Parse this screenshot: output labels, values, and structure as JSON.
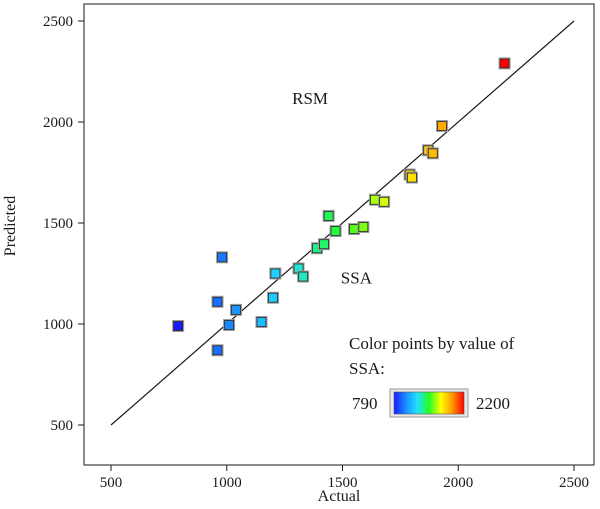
{
  "chart_data": {
    "type": "scatter",
    "title": "",
    "xlabel": "Actual",
    "ylabel": "Predicted",
    "xlim": [
      400,
      2550
    ],
    "ylim": [
      400,
      2550
    ],
    "xticks": [
      500,
      1000,
      1500,
      2000,
      2500
    ],
    "yticks": [
      500,
      1000,
      1500,
      2000,
      2500
    ],
    "grid": false,
    "reference_line": {
      "from": [
        500,
        500
      ],
      "to": [
        2500,
        2500
      ]
    },
    "annotations": [
      {
        "text": "RSM",
        "x": 1360,
        "y": 2090
      },
      {
        "text": "SSA",
        "x": 1560,
        "y": 1200
      }
    ],
    "color_legend": {
      "title_line1": "Color points by value of",
      "title_line2": "SSA:",
      "min_label": "790",
      "max_label": "2200",
      "min": 790,
      "max": 2200,
      "placement": "bottom-right",
      "colors": [
        "#1a1aff",
        "#1890ff",
        "#22e0ff",
        "#22ff22",
        "#ffff00",
        "#ff9900",
        "#ff0000"
      ]
    },
    "points": [
      {
        "x": 790,
        "y": 990,
        "c": 790
      },
      {
        "x": 960,
        "y": 870,
        "c": 960
      },
      {
        "x": 960,
        "y": 1110,
        "c": 960
      },
      {
        "x": 980,
        "y": 1330,
        "c": 980
      },
      {
        "x": 1010,
        "y": 995,
        "c": 1010
      },
      {
        "x": 1040,
        "y": 1070,
        "c": 1040
      },
      {
        "x": 1150,
        "y": 1010,
        "c": 1150
      },
      {
        "x": 1200,
        "y": 1130,
        "c": 1200
      },
      {
        "x": 1210,
        "y": 1250,
        "c": 1210
      },
      {
        "x": 1310,
        "y": 1275,
        "c": 1310
      },
      {
        "x": 1330,
        "y": 1235,
        "c": 1330
      },
      {
        "x": 1390,
        "y": 1375,
        "c": 1390
      },
      {
        "x": 1420,
        "y": 1395,
        "c": 1420
      },
      {
        "x": 1440,
        "y": 1535,
        "c": 1440
      },
      {
        "x": 1470,
        "y": 1460,
        "c": 1470
      },
      {
        "x": 1550,
        "y": 1470,
        "c": 1550
      },
      {
        "x": 1590,
        "y": 1480,
        "c": 1590
      },
      {
        "x": 1640,
        "y": 1615,
        "c": 1640
      },
      {
        "x": 1680,
        "y": 1605,
        "c": 1680
      },
      {
        "x": 1790,
        "y": 1740,
        "c": 1790
      },
      {
        "x": 1800,
        "y": 1725,
        "c": 1800
      },
      {
        "x": 1870,
        "y": 1860,
        "c": 1870
      },
      {
        "x": 1890,
        "y": 1845,
        "c": 1890
      },
      {
        "x": 1930,
        "y": 1980,
        "c": 1930
      },
      {
        "x": 2200,
        "y": 2290,
        "c": 2200
      }
    ]
  }
}
